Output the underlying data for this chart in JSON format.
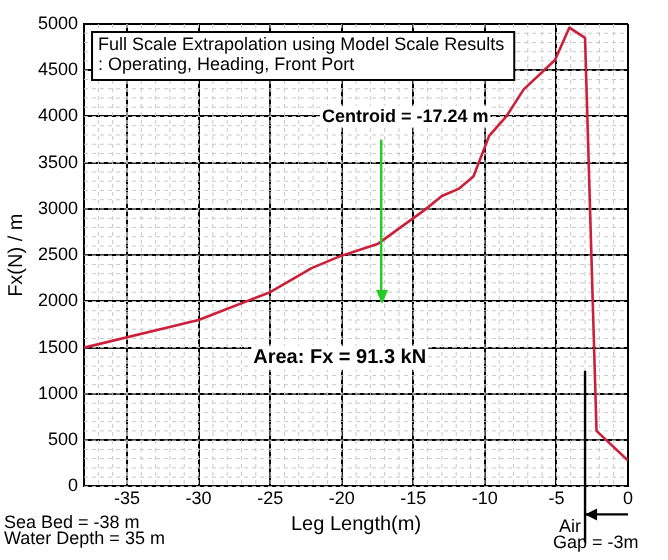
{
  "chart_data": {
    "type": "line",
    "title": "Full Scale Extrapolation using Model Scale Results\n: Operating, Heading, Front Port",
    "xlabel": "Leg Length(m)",
    "ylabel": "Fx(N) / m",
    "x": [
      -38,
      -30,
      -25,
      -22.1,
      -20.1,
      -17.5,
      -14.2,
      -13,
      -11.8,
      -10.8,
      -9.7,
      -8.5,
      -7.3,
      -5.1,
      -4.1,
      -3,
      -2.2,
      0
    ],
    "series": [
      {
        "color": "#cc1f3a",
        "values": [
          1500,
          1800,
          2100,
          2360,
          2490,
          2620,
          2990,
          3140,
          3220,
          3350,
          3790,
          4000,
          4290,
          4610,
          4960,
          4850,
          600,
          280
        ]
      }
    ],
    "xlim": [
      -38,
      0
    ],
    "xticks": [
      -35,
      -30,
      -25,
      -20,
      -15,
      -10,
      -5,
      0
    ],
    "ylim": [
      0,
      5000
    ],
    "yticks": [
      0,
      500,
      1000,
      1500,
      2000,
      2500,
      3000,
      3500,
      4000,
      4500,
      5000
    ],
    "grid": true,
    "legend": false,
    "marker": "none",
    "line_style": "solid",
    "ref_lines": [
      {
        "axis": "x",
        "value": -17.24,
        "label": "Centroid = -17.24 m",
        "color": "#22cc22"
      },
      {
        "axis": "x",
        "value": -3,
        "label": "Air Gap = -3m",
        "color": "#000000"
      }
    ],
    "annotations": [
      "Area: Fx = 91.3 kN",
      "Sea Bed = -38 m",
      "Water Depth = 35 m"
    ]
  }
}
